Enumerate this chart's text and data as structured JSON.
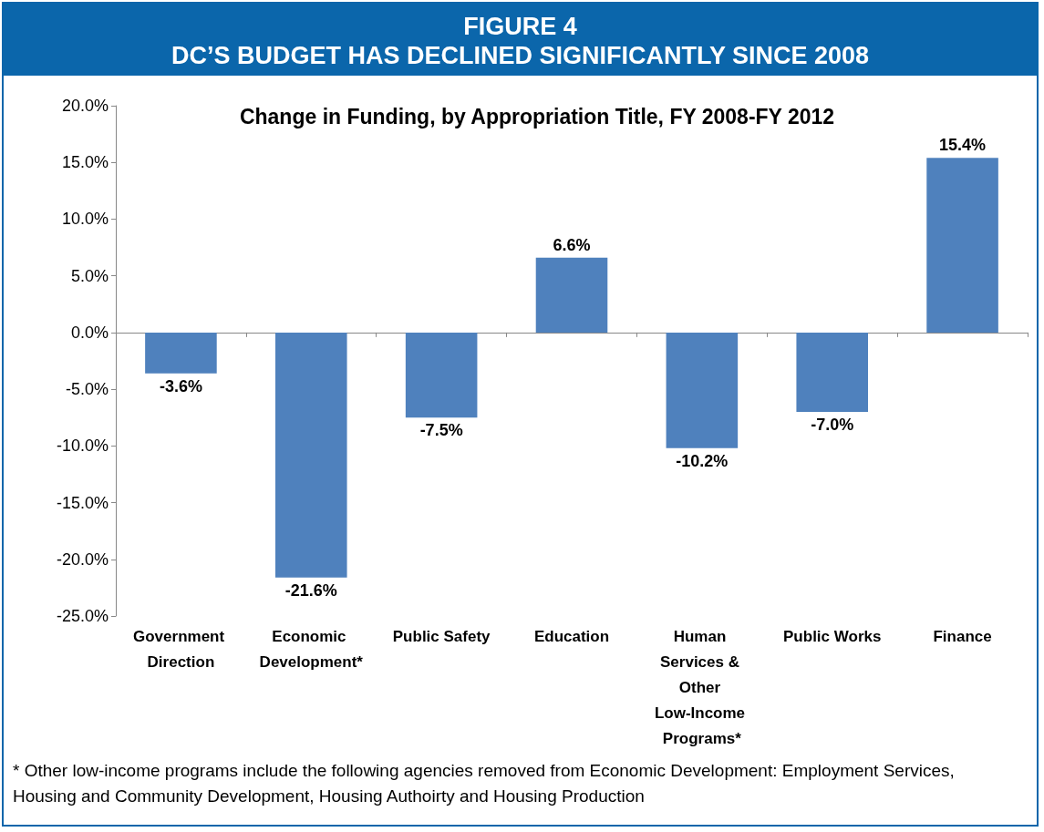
{
  "chart_data": {
    "type": "bar",
    "title": "FIGURE 4\nDC’S BUDGET HAS DECLINED SIGNIFICANTLY SINCE 2008",
    "subtitle": "Change in Funding, by Appropriation Title, FY 2008-FY 2012",
    "categories": [
      "Government Direction",
      "Economic Development*",
      "Public Safety",
      "Education",
      "Human Services & Other Low-Income Programs*",
      "Public Works",
      "Finance"
    ],
    "values": [
      -3.6,
      -21.6,
      -7.5,
      6.6,
      -10.2,
      -7.0,
      15.4
    ],
    "value_labels": [
      "-3.6%",
      "-21.6%",
      "-7.5%",
      "6.6%",
      "-10.2%",
      "-7.0%",
      "15.4%"
    ],
    "color": "#4f81bd",
    "ylim": [
      -25,
      20
    ],
    "yticks": [
      {
        "value": -25,
        "label": "-25.0%"
      },
      {
        "value": -20,
        "label": "-20.0%"
      },
      {
        "value": -15,
        "label": "-15.0%"
      },
      {
        "value": -10,
        "label": "-10.0%"
      },
      {
        "value": -5,
        "label": "-5.0%"
      },
      {
        "value": 0,
        "label": "0.0%"
      },
      {
        "value": 5,
        "label": "5.0%"
      },
      {
        "value": 10,
        "label": "10.0%"
      },
      {
        "value": 15,
        "label": "15.0%"
      },
      {
        "value": 20,
        "label": "20.0%"
      }
    ],
    "annotations": [
      "* Other low-income programs include the following agencies removed from Economic Development: Employment Services, Housing and Community Development, Housing Authoirty and Housing Production"
    ]
  }
}
